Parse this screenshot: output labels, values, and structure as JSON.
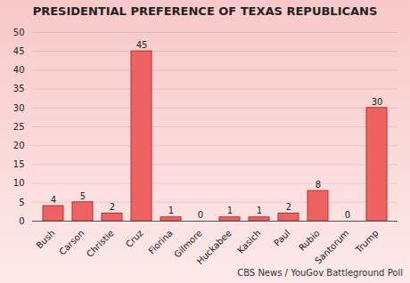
{
  "chart_data": {
    "type": "bar",
    "title": "PRESIDENTIAL PREFERENCE OF TEXAS REPUBLICANS",
    "caption": "CBS News / YouGov Battleground Poll",
    "categories": [
      "Bush",
      "Carson",
      "Christie",
      "Cruz",
      "Fiorina",
      "Gilmore",
      "Huckabee",
      "Kasich",
      "Paul",
      "Rubio",
      "Santorum",
      "Trump"
    ],
    "values": [
      4,
      5,
      2,
      45,
      1,
      0,
      1,
      1,
      2,
      8,
      0,
      30
    ],
    "color": "#ee6262",
    "ylim": [
      0,
      50
    ],
    "yticks": [
      0,
      5,
      10,
      15,
      20,
      25,
      30,
      35,
      40,
      45,
      50
    ],
    "grid": true,
    "data_labels": true
  }
}
